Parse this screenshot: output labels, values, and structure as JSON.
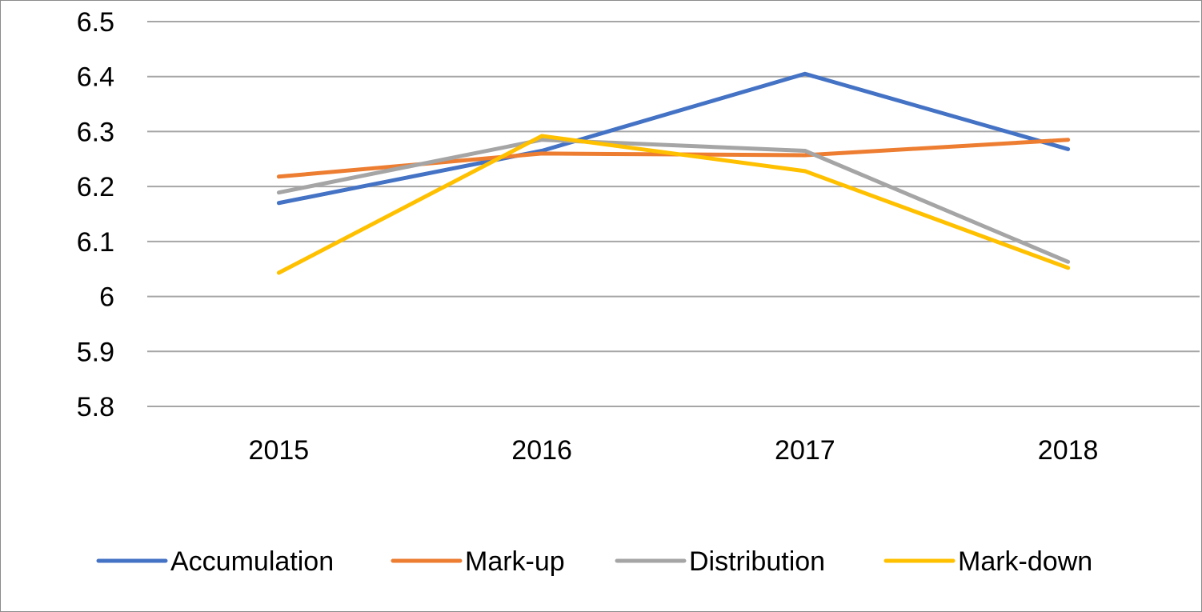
{
  "chart_data": {
    "type": "line",
    "title": "",
    "xlabel": "",
    "ylabel": "",
    "categories": [
      "2015",
      "2016",
      "2017",
      "2018"
    ],
    "ylim": [
      5.8,
      6.5
    ],
    "yticks": [
      "5.8",
      "5.9",
      "6",
      "6.1",
      "6.2",
      "6.3",
      "6.4",
      "6.5"
    ],
    "grid": true,
    "legend_position": "bottom",
    "series": [
      {
        "name": "Accumulation",
        "color": "#4472C4",
        "values": [
          6.17,
          6.265,
          6.405,
          6.268
        ]
      },
      {
        "name": "Mark-up",
        "color": "#ED7D31",
        "values": [
          6.218,
          6.26,
          6.257,
          6.285
        ]
      },
      {
        "name": "Distribution",
        "color": "#A5A5A5",
        "values": [
          6.189,
          6.285,
          6.265,
          6.063
        ]
      },
      {
        "name": "Mark-down",
        "color": "#FFC000",
        "values": [
          6.043,
          6.292,
          6.228,
          6.052
        ]
      }
    ]
  }
}
